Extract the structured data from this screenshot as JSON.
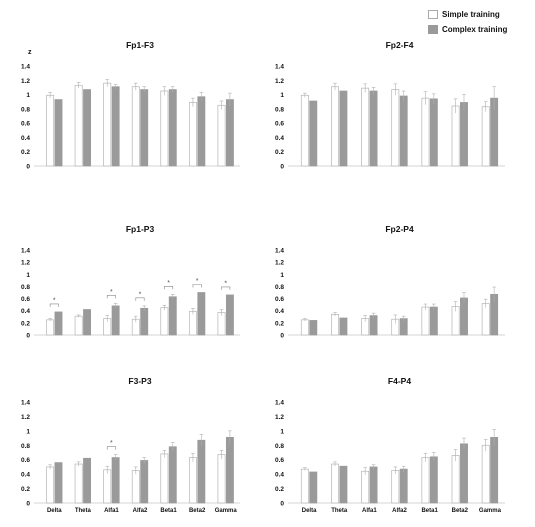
{
  "legend": {
    "items": [
      {
        "label": "Simple training",
        "color": "#ffffff",
        "border": "#aaaaaa"
      },
      {
        "label": "Complex training",
        "color": "#9a9a9a",
        "border": "#9a9a9a"
      }
    ]
  },
  "colors": {
    "simple_fill": "#ffffff",
    "simple_stroke": "#b5b5b5",
    "complex_fill": "#9a9a9a",
    "error_bar": "#b0b0b0",
    "axis": "#aaaaaa"
  },
  "chart_data": [
    {
      "type": "bar",
      "title": "Fp1-F3",
      "ylabel": "z",
      "ylim": [
        0,
        1.4
      ],
      "yticks": [
        "0",
        "0.2",
        "0.4",
        "0.6",
        "0.8",
        "1",
        "1.2",
        "1.4"
      ],
      "categories": [
        "Delta",
        "Theta",
        "Alfa1",
        "Alfa2",
        "Beta1",
        "Beta2",
        "Gamma"
      ],
      "show_category_labels": false,
      "series": [
        {
          "name": "Simple training",
          "values": [
            0.99,
            1.13,
            1.16,
            1.11,
            1.05,
            0.89,
            0.85
          ],
          "errors": [
            0.04,
            0.04,
            0.05,
            0.05,
            0.06,
            0.06,
            0.06
          ]
        },
        {
          "name": "Complex training",
          "values": [
            0.93,
            1.07,
            1.11,
            1.07,
            1.07,
            0.97,
            0.93
          ],
          "errors": [
            0.0,
            0.0,
            0.03,
            0.04,
            0.04,
            0.06,
            0.09
          ]
        }
      ],
      "significant": []
    },
    {
      "type": "bar",
      "title": "Fp2-F4",
      "ylabel": "",
      "ylim": [
        0,
        1.4
      ],
      "yticks": [
        "0",
        "0.2",
        "0.4",
        "0.6",
        "0.8",
        "1",
        "1.2",
        "1.4"
      ],
      "categories": [
        "Delta",
        "Theta",
        "Alfa1",
        "Alfa2",
        "Beta1",
        "Beta2",
        "Gamma"
      ],
      "show_category_labels": false,
      "series": [
        {
          "name": "Simple training",
          "values": [
            0.99,
            1.11,
            1.09,
            1.07,
            0.95,
            0.84,
            0.83
          ],
          "errors": [
            0.03,
            0.05,
            0.06,
            0.08,
            0.09,
            0.1,
            0.07
          ]
        },
        {
          "name": "Complex training",
          "values": [
            0.91,
            1.05,
            1.05,
            0.98,
            0.94,
            0.89,
            0.95
          ],
          "errors": [
            0.0,
            0.0,
            0.05,
            0.07,
            0.07,
            0.11,
            0.16
          ]
        }
      ],
      "significant": []
    },
    {
      "type": "bar",
      "title": "Fp1-P3",
      "ylabel": "",
      "ylim": [
        0,
        1.4
      ],
      "yticks": [
        "0",
        "0.2",
        "0.4",
        "0.6",
        "0.8",
        "1",
        "1.2",
        "1.4"
      ],
      "categories": [
        "Delta",
        "Theta",
        "Alfa1",
        "Alfa2",
        "Beta1",
        "Beta2",
        "Gamma"
      ],
      "show_category_labels": false,
      "series": [
        {
          "name": "Simple training",
          "values": [
            0.25,
            0.31,
            0.27,
            0.26,
            0.45,
            0.39,
            0.37
          ],
          "errors": [
            0.02,
            0.02,
            0.05,
            0.05,
            0.04,
            0.05,
            0.05
          ]
        },
        {
          "name": "Complex training",
          "values": [
            0.38,
            0.42,
            0.48,
            0.44,
            0.63,
            0.7,
            0.66
          ],
          "errors": [
            0.0,
            0.0,
            0.04,
            0.04,
            0.04,
            0.0,
            0.0
          ]
        }
      ],
      "significant": [
        0,
        2,
        3,
        4,
        5,
        6
      ],
      "significance_label": "*"
    },
    {
      "type": "bar",
      "title": "Fp2-P4",
      "ylabel": "",
      "ylim": [
        0,
        1.4
      ],
      "yticks": [
        "0",
        "0.2",
        "0.4",
        "0.6",
        "0.8",
        "1",
        "1.2",
        "1.4"
      ],
      "categories": [
        "Delta",
        "Theta",
        "Alfa1",
        "Alfa2",
        "Beta1",
        "Beta2",
        "Gamma"
      ],
      "show_category_labels": false,
      "series": [
        {
          "name": "Simple training",
          "values": [
            0.25,
            0.34,
            0.27,
            0.26,
            0.46,
            0.47,
            0.52
          ],
          "errors": [
            0.02,
            0.03,
            0.05,
            0.07,
            0.05,
            0.08,
            0.07
          ]
        },
        {
          "name": "Complex training",
          "values": [
            0.24,
            0.28,
            0.32,
            0.27,
            0.46,
            0.61,
            0.67
          ],
          "errors": [
            0.0,
            0.0,
            0.04,
            0.04,
            0.05,
            0.09,
            0.12
          ]
        }
      ],
      "significant": []
    },
    {
      "type": "bar",
      "title": "F3-P3",
      "ylabel": "",
      "ylim": [
        0,
        1.4
      ],
      "yticks": [
        "0",
        "0.2",
        "0.4",
        "0.6",
        "0.8",
        "1",
        "1.2",
        "1.4"
      ],
      "categories": [
        "Delta",
        "Theta",
        "Alfa1",
        "Alfa2",
        "Beta1",
        "Beta2",
        "Gamma"
      ],
      "show_category_labels": true,
      "series": [
        {
          "name": "Simple training",
          "values": [
            0.5,
            0.54,
            0.46,
            0.45,
            0.68,
            0.63,
            0.67
          ],
          "errors": [
            0.03,
            0.03,
            0.05,
            0.05,
            0.05,
            0.06,
            0.06
          ]
        },
        {
          "name": "Complex training",
          "values": [
            0.56,
            0.62,
            0.63,
            0.59,
            0.78,
            0.87,
            0.91
          ],
          "errors": [
            0.0,
            0.0,
            0.04,
            0.04,
            0.06,
            0.08,
            0.09
          ]
        }
      ],
      "significant": [
        2
      ],
      "significance_label": "*"
    },
    {
      "type": "bar",
      "title": "F4-P4",
      "ylabel": "",
      "ylim": [
        0,
        1.4
      ],
      "yticks": [
        "0",
        "0.2",
        "0.4",
        "0.6",
        "0.8",
        "1",
        "1.2",
        "1.4"
      ],
      "categories": [
        "Delta",
        "Theta",
        "Alfa1",
        "Alfa2",
        "Beta1",
        "Beta2",
        "Gamma"
      ],
      "show_category_labels": true,
      "series": [
        {
          "name": "Simple training",
          "values": [
            0.47,
            0.54,
            0.44,
            0.45,
            0.63,
            0.66,
            0.8
          ],
          "errors": [
            0.02,
            0.03,
            0.05,
            0.05,
            0.06,
            0.08,
            0.08
          ]
        },
        {
          "name": "Complex training",
          "values": [
            0.43,
            0.51,
            0.5,
            0.47,
            0.64,
            0.82,
            0.91
          ],
          "errors": [
            0.0,
            0.0,
            0.03,
            0.04,
            0.06,
            0.08,
            0.11
          ]
        }
      ],
      "significant": []
    }
  ]
}
